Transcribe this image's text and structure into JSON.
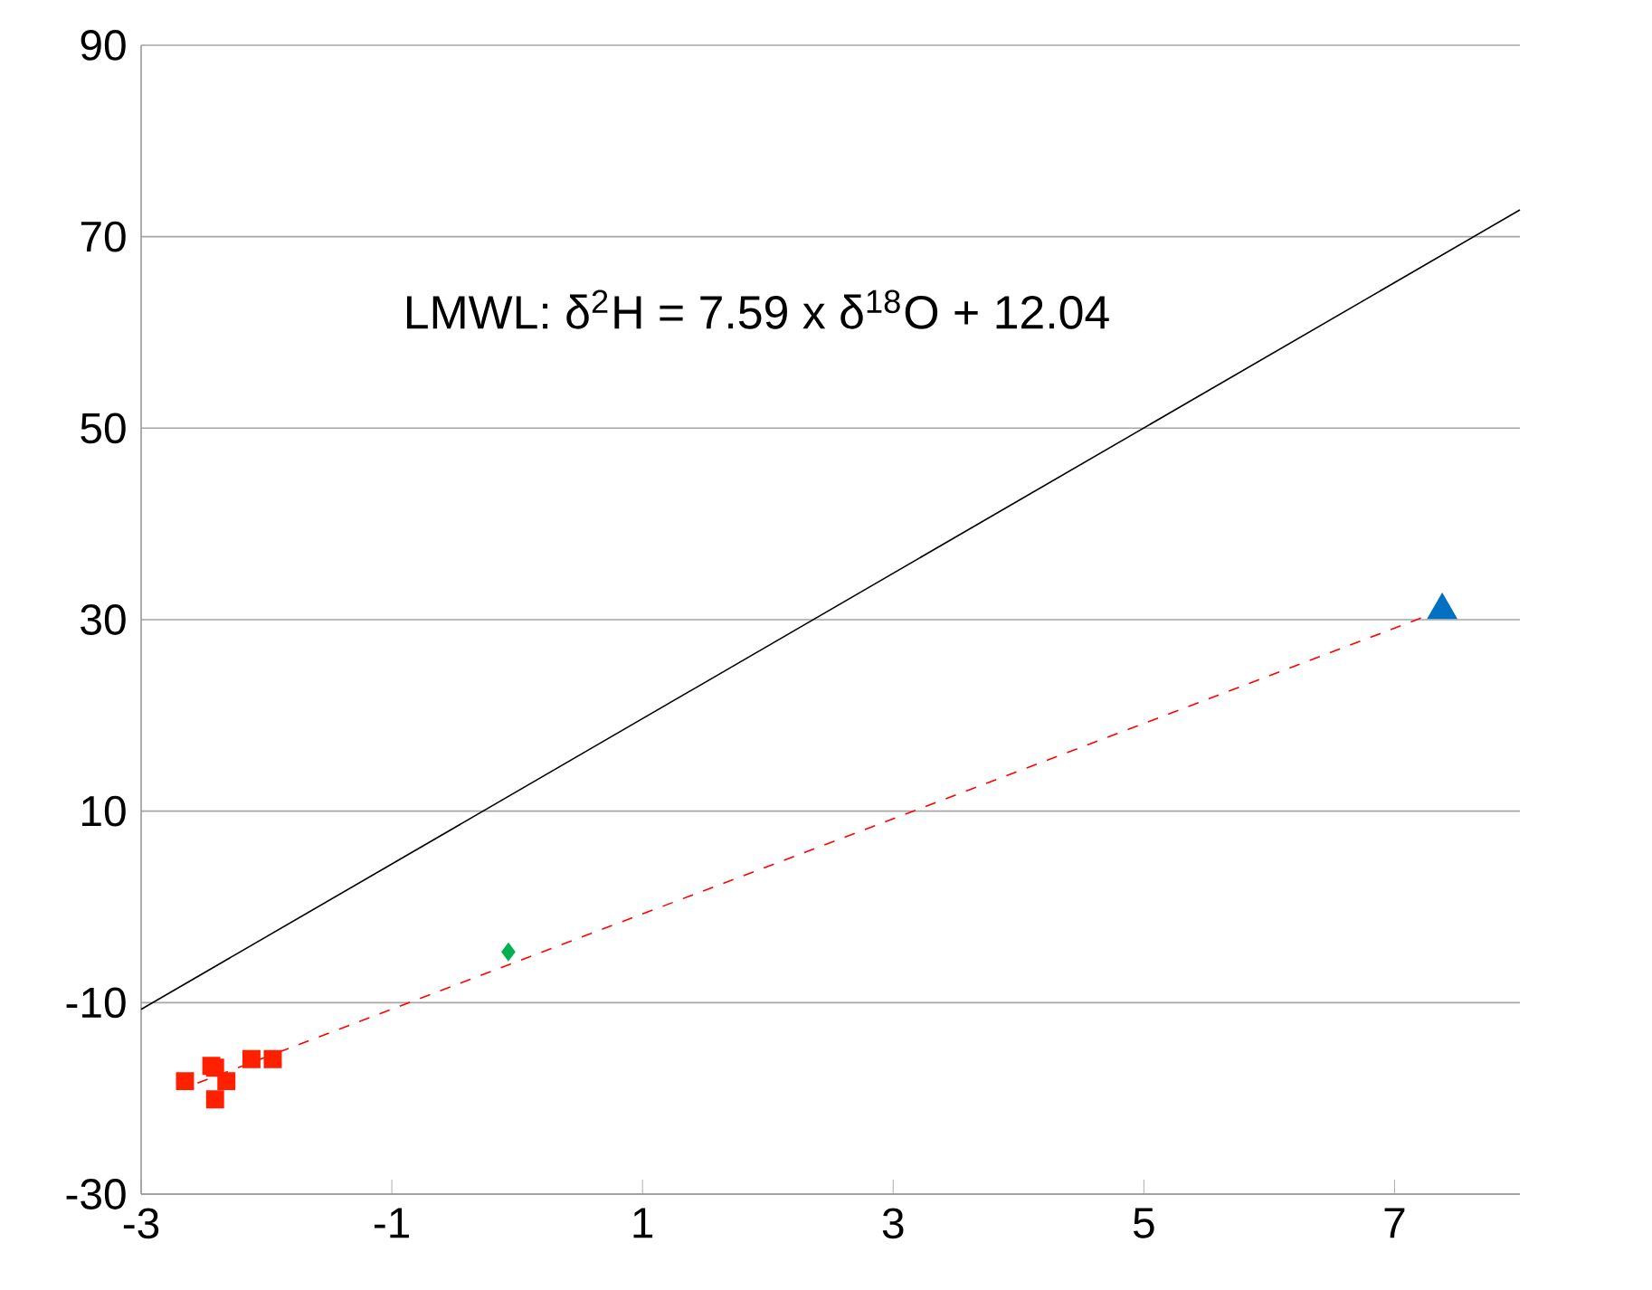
{
  "chart_data": {
    "type": "scatter",
    "xlim": [
      -3,
      8
    ],
    "ylim": [
      -30,
      90
    ],
    "xticks": [
      -3,
      -1,
      1,
      3,
      5,
      7
    ],
    "yticks": [
      -30,
      -10,
      10,
      30,
      50,
      70,
      90
    ],
    "grid": "y",
    "annotations": [
      "LMWL:   δ$^{2}$H = 7.59 x δ$^{18}$O + 12.04"
    ],
    "series": [
      {
        "type": "line",
        "color": "#000000",
        "marker": "none",
        "line_style": "solid",
        "x": [
          -3,
          8
        ],
        "values": [
          -10.7,
          72.8
        ]
      },
      {
        "color": "#ff2000",
        "marker": "square",
        "x": [
          -2.65,
          -2.44,
          -2.41,
          -2.32,
          -2.41,
          -2.12,
          -1.95
        ],
        "values": [
          -18.2,
          -16.6,
          -16.8,
          -18.2,
          -20.1,
          -15.9,
          -15.9
        ]
      },
      {
        "color": "#00b050",
        "marker": "diamond",
        "x": [
          -0.07
        ],
        "values": [
          -4.7
        ]
      },
      {
        "color": "#0070c0",
        "marker": "triangle",
        "x": [
          7.38
        ],
        "values": [
          31
        ]
      },
      {
        "type": "line",
        "color": "#ff0000",
        "marker": "none",
        "line_style": "dashed",
        "x": [
          -2.55,
          7.3
        ],
        "values": [
          -18.4,
          30.6
        ]
      }
    ]
  }
}
